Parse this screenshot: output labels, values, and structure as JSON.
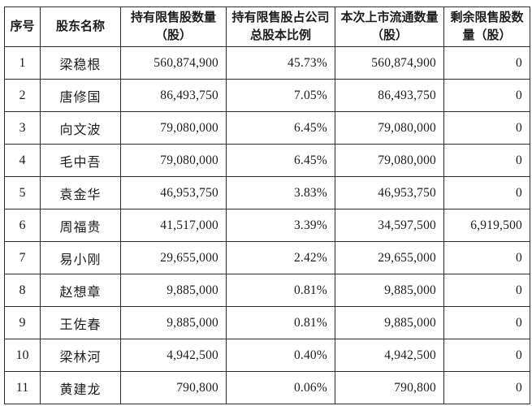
{
  "table": {
    "columns": [
      {
        "key": "index",
        "label": "序号",
        "align": "center"
      },
      {
        "key": "name",
        "label": "股东名称",
        "align": "name"
      },
      {
        "key": "held",
        "label": "持有限售股数量（股）",
        "align": "right"
      },
      {
        "key": "percent",
        "label": "持有限售股占公司总股本比例",
        "align": "right"
      },
      {
        "key": "circulating",
        "label": "本次上市流通数量（股）",
        "align": "right"
      },
      {
        "key": "remaining",
        "label": "剩余限售股数量（股）",
        "align": "right"
      }
    ],
    "rows": [
      [
        "1",
        "梁稳根",
        "560,874,900",
        "45.73%",
        "560,874,900",
        "0"
      ],
      [
        "2",
        "唐修国",
        "86,493,750",
        "7.05%",
        "86,493,750",
        "0"
      ],
      [
        "3",
        "向文波",
        "79,080,000",
        "6.45%",
        "79,080,000",
        "0"
      ],
      [
        "4",
        "毛中吾",
        "79,080,000",
        "6.45%",
        "79,080,000",
        "0"
      ],
      [
        "5",
        "袁金华",
        "46,953,750",
        "3.83%",
        "46,953,750",
        "0"
      ],
      [
        "6",
        "周福贵",
        "41,517,000",
        "3.39%",
        "34,597,500",
        "6,919,500"
      ],
      [
        "7",
        "易小刚",
        "29,655,000",
        "2.42%",
        "29,655,000",
        "0"
      ],
      [
        "8",
        "赵想章",
        "9,885,000",
        "0.81%",
        "9,885,000",
        "0"
      ],
      [
        "9",
        "王佐春",
        "9,885,000",
        "0.81%",
        "9,885,000",
        "0"
      ],
      [
        "10",
        "梁林河",
        "4,942,500",
        "0.40%",
        "4,942,500",
        "0"
      ],
      [
        "11",
        "黄建龙",
        "790,800",
        "0.06%",
        "790,800",
        "0"
      ]
    ],
    "border_color": "#2b2b2b",
    "background_color": "#ffffff"
  }
}
